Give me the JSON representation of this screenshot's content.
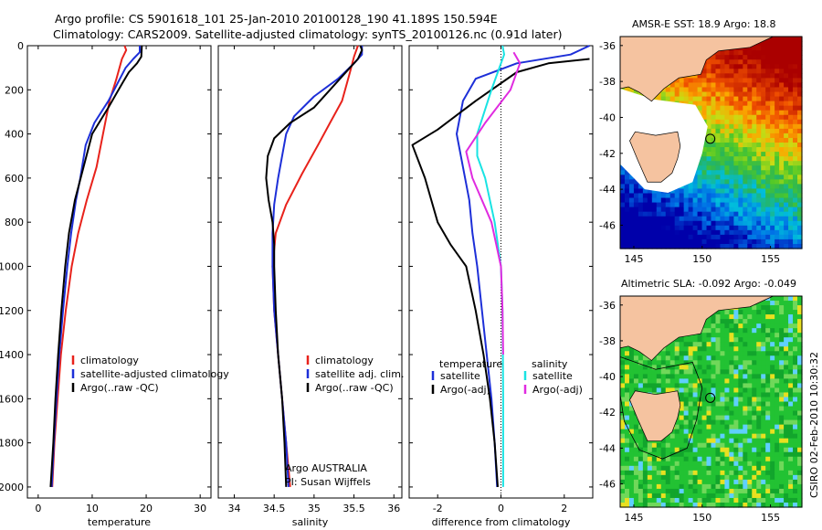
{
  "header": {
    "line1": "Argo profile: CS 5901618_101 25-Jan-2010 20100128_190 41.189S 150.594E",
    "line2": "Climatology: CARS2009. Satellite-adjusted climatology: synTS_20100126.nc (0.91d later)"
  },
  "side_label": "CSIRO 02-Feb-2010 10:30:32",
  "colors": {
    "red": "#e8221b",
    "blue": "#1d2fd8",
    "black": "#000000",
    "cyan": "#19e3e3",
    "magenta": "#e02be0"
  },
  "chart_data": [
    {
      "type": "line",
      "id": "temperature",
      "xlabel": "temperature",
      "ylabel": "",
      "xlim": [
        -2,
        32
      ],
      "ylim": [
        2050,
        0
      ],
      "xticks": [
        0,
        10,
        20,
        30
      ],
      "yticks": [
        0,
        200,
        400,
        600,
        800,
        1000,
        1200,
        1400,
        1600,
        1800,
        2000
      ],
      "legend": [
        "climatology",
        "satellite-adjusted climatology",
        "Argo(..raw -QC)"
      ],
      "series": [
        {
          "name": "climatology",
          "color": "red",
          "points": [
            [
              16,
              0
            ],
            [
              16.3,
              20
            ],
            [
              15.5,
              60
            ],
            [
              14.5,
              150
            ],
            [
              13.2,
              250
            ],
            [
              12,
              400
            ],
            [
              10.8,
              550
            ],
            [
              9,
              700
            ],
            [
              7.4,
              850
            ],
            [
              6.2,
              1000
            ],
            [
              5.1,
              1200
            ],
            [
              4.2,
              1400
            ],
            [
              3.6,
              1600
            ],
            [
              3,
              1800
            ],
            [
              2.6,
              2000
            ]
          ]
        },
        {
          "name": "satellite-adjusted climatology",
          "color": "blue",
          "points": [
            [
              18.8,
              0
            ],
            [
              18.8,
              30
            ],
            [
              17.6,
              60
            ],
            [
              16.2,
              100
            ],
            [
              13,
              250
            ],
            [
              10.4,
              350
            ],
            [
              8.8,
              450
            ],
            [
              7.8,
              600
            ],
            [
              7,
              700
            ],
            [
              6.1,
              850
            ],
            [
              5.4,
              1000
            ],
            [
              4.6,
              1200
            ],
            [
              3.9,
              1400
            ],
            [
              3.4,
              1600
            ],
            [
              2.9,
              1800
            ],
            [
              2.5,
              2000
            ]
          ]
        },
        {
          "name": "Argo(..raw -QC)",
          "color": "black",
          "points": [
            [
              19.2,
              0
            ],
            [
              19.1,
              50
            ],
            [
              18.3,
              80
            ],
            [
              16.8,
              120
            ],
            [
              15.6,
              170
            ],
            [
              13,
              280
            ],
            [
              10,
              400
            ],
            [
              8.4,
              550
            ],
            [
              6.8,
              700
            ],
            [
              5.7,
              850
            ],
            [
              5,
              1000
            ],
            [
              4.3,
              1200
            ],
            [
              3.7,
              1400
            ],
            [
              3.2,
              1600
            ],
            [
              2.8,
              1800
            ],
            [
              2.3,
              2000
            ]
          ]
        }
      ]
    },
    {
      "type": "line",
      "id": "salinity",
      "xlabel": "salinity",
      "ylabel": "",
      "xlim": [
        33.8,
        36.1
      ],
      "ylim": [
        2050,
        0
      ],
      "xticks": [
        34,
        34.5,
        35,
        35.5,
        36
      ],
      "yticks": [
        0,
        200,
        400,
        600,
        800,
        1000,
        1200,
        1400,
        1600,
        1800,
        2000
      ],
      "legend": [
        "climatology",
        "satellite adj. clim.",
        "Argo(..raw -QC)"
      ],
      "annotation": [
        "Argo AUSTRALIA",
        "PI: Susan Wijffels"
      ],
      "series": [
        {
          "name": "climatology",
          "color": "red",
          "points": [
            [
              35.55,
              0
            ],
            [
              35.5,
              50
            ],
            [
              35.45,
              120
            ],
            [
              35.35,
              250
            ],
            [
              35.2,
              350
            ],
            [
              35.05,
              450
            ],
            [
              34.85,
              580
            ],
            [
              34.65,
              720
            ],
            [
              34.52,
              850
            ],
            [
              34.48,
              1000
            ],
            [
              34.5,
              1200
            ],
            [
              34.55,
              1400
            ],
            [
              34.6,
              1600
            ],
            [
              34.65,
              1800
            ],
            [
              34.7,
              2000
            ]
          ]
        },
        {
          "name": "satellite adj. clim.",
          "color": "blue",
          "points": [
            [
              35.6,
              0
            ],
            [
              35.6,
              40
            ],
            [
              35.5,
              80
            ],
            [
              35.3,
              150
            ],
            [
              35,
              230
            ],
            [
              34.75,
              320
            ],
            [
              34.65,
              400
            ],
            [
              34.6,
              500
            ],
            [
              34.55,
              600
            ],
            [
              34.5,
              720
            ],
            [
              34.48,
              850
            ],
            [
              34.48,
              1000
            ],
            [
              34.5,
              1200
            ],
            [
              34.55,
              1400
            ],
            [
              34.6,
              1600
            ],
            [
              34.65,
              1800
            ],
            [
              34.68,
              2000
            ]
          ]
        },
        {
          "name": "Argo(..raw -QC)",
          "color": "black",
          "points": [
            [
              35.58,
              0
            ],
            [
              35.6,
              20
            ],
            [
              35.55,
              60
            ],
            [
              35.45,
              100
            ],
            [
              35.2,
              200
            ],
            [
              35,
              280
            ],
            [
              34.7,
              350
            ],
            [
              34.5,
              420
            ],
            [
              34.42,
              500
            ],
            [
              34.4,
              600
            ],
            [
              34.43,
              700
            ],
            [
              34.48,
              800
            ],
            [
              34.5,
              900
            ],
            [
              34.5,
              1000
            ],
            [
              34.52,
              1200
            ],
            [
              34.55,
              1400
            ],
            [
              34.6,
              1600
            ],
            [
              34.63,
              1800
            ],
            [
              34.65,
              2000
            ]
          ]
        }
      ]
    },
    {
      "type": "line",
      "id": "difference",
      "xlabel": "difference from climatology",
      "ylabel": "",
      "xlim": [
        -2.9,
        2.9
      ],
      "ylim": [
        2050,
        0
      ],
      "xticks": [
        -2,
        0,
        2
      ],
      "yticks": [
        0,
        200,
        400,
        600,
        800,
        1000,
        1200,
        1400,
        1600,
        1800,
        2000
      ],
      "legend_groups": {
        "left": "temperature",
        "right": "salinity"
      },
      "legend": [
        "satellite",
        "Argo(-adj)",
        "satellite",
        "Argo(-adj)"
      ],
      "series": [
        {
          "name": "temperature satellite",
          "color": "blue",
          "points": [
            [
              2.8,
              0
            ],
            [
              2.2,
              40
            ],
            [
              0.5,
              80
            ],
            [
              -0.8,
              150
            ],
            [
              -1.2,
              250
            ],
            [
              -1.4,
              400
            ],
            [
              -1.2,
              550
            ],
            [
              -1,
              700
            ],
            [
              -0.9,
              850
            ],
            [
              -0.75,
              1000
            ],
            [
              -0.6,
              1200
            ],
            [
              -0.45,
              1400
            ],
            [
              -0.3,
              1600
            ],
            [
              -0.2,
              1800
            ],
            [
              -0.12,
              2000
            ]
          ]
        },
        {
          "name": "temperature Argo(-adj)",
          "color": "black",
          "points": [
            [
              2.8,
              60
            ],
            [
              1.5,
              80
            ],
            [
              0.5,
              120
            ],
            [
              -0.8,
              250
            ],
            [
              -2,
              380
            ],
            [
              -2.8,
              450
            ],
            [
              -2.4,
              600
            ],
            [
              -2,
              800
            ],
            [
              -1.6,
              900
            ],
            [
              -1.1,
              1000
            ],
            [
              -0.8,
              1200
            ],
            [
              -0.55,
              1400
            ],
            [
              -0.35,
              1600
            ],
            [
              -0.2,
              1800
            ],
            [
              -0.1,
              2000
            ]
          ]
        },
        {
          "name": "salinity satellite",
          "color": "cyan",
          "points": [
            [
              0.05,
              0
            ],
            [
              0.1,
              40
            ],
            [
              0,
              80
            ],
            [
              -0.3,
              200
            ],
            [
              -0.75,
              400
            ],
            [
              -0.75,
              500
            ],
            [
              -0.5,
              600
            ],
            [
              -0.2,
              800
            ],
            [
              0,
              1000
            ],
            [
              0.05,
              1200
            ],
            [
              0.06,
              1400
            ],
            [
              0.07,
              1600
            ],
            [
              0.07,
              1800
            ],
            [
              0.07,
              2000
            ]
          ]
        },
        {
          "name": "salinity Argo(-adj)",
          "color": "magenta",
          "points": [
            [
              0.4,
              30
            ],
            [
              0.6,
              80
            ],
            [
              0.3,
              200
            ],
            [
              -0.5,
              350
            ],
            [
              -1.1,
              480
            ],
            [
              -0.9,
              600
            ],
            [
              -0.3,
              800
            ],
            [
              0,
              1000
            ],
            [
              0.05,
              1200
            ],
            [
              0.07,
              1400
            ]
          ]
        }
      ]
    },
    {
      "type": "heatmap",
      "id": "sst_map",
      "title": "AMSR-E SST: 18.9 Argo: 18.8",
      "xlim": [
        144,
        157.3
      ],
      "ylim": [
        -47.3,
        -35.5
      ],
      "xticks": [
        145,
        150,
        155
      ],
      "yticks": [
        -36,
        -38,
        -40,
        -42,
        -44,
        -46
      ],
      "argo_position": [
        150.594,
        -41.189
      ]
    },
    {
      "type": "heatmap",
      "id": "sla_map",
      "title": "Altimetric SLA: -0.092 Argo: -0.049",
      "xlim": [
        144,
        157.3
      ],
      "ylim": [
        -47.3,
        -35.5
      ],
      "xticks": [
        145,
        150,
        155
      ],
      "yticks": [
        -36,
        -38,
        -40,
        -42,
        -44,
        -46
      ],
      "argo_position": [
        150.594,
        -41.189
      ]
    }
  ]
}
